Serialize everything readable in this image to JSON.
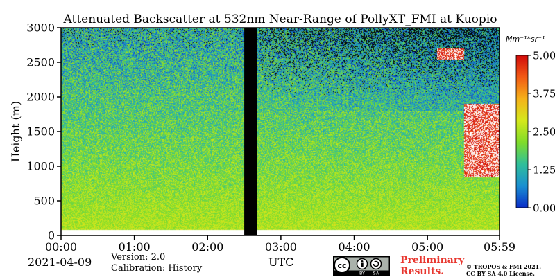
{
  "chart_data": {
    "type": "heatmap",
    "title": "Attenuated Backscatter at 532nm Near-Range of PollyXT_FMI at Kuopio",
    "xlabel": "UTC",
    "ylabel": "Height (m)",
    "x_ticks": [
      "00:00",
      "01:00",
      "02:00",
      "03:00",
      "04:00",
      "05:00",
      "05:59"
    ],
    "x_range_hours": [
      0,
      5.983
    ],
    "y_ticks": [
      0,
      500,
      1000,
      1500,
      2000,
      2500,
      3000
    ],
    "ylim": [
      0,
      3000
    ],
    "colorbar": {
      "unit_label": "Mm⁻¹*sr⁻¹",
      "ticks": [
        "0.00",
        "1.25",
        "2.50",
        "3.75",
        "5.00"
      ],
      "range": [
        0,
        5
      ],
      "colors": [
        "#0a2cc8",
        "#1a8fd1",
        "#2fbf9a",
        "#7fdc2a",
        "#d4e81c",
        "#f5b21a",
        "#f25a14",
        "#d10a0a"
      ]
    },
    "no_data_gaps_hours": [
      [
        2.5,
        2.67
      ]
    ],
    "cloud_features": [
      {
        "start_hour": 5.13,
        "end_hour": 5.5,
        "base_m": 2550,
        "top_m": 2700
      },
      {
        "start_hour": 5.5,
        "end_hour": 5.983,
        "base_m": 850,
        "top_m": 1900
      }
    ],
    "missing_fill_color": "#000000"
  },
  "footer": {
    "date": "2021-04-09",
    "version": "Version: 2.0",
    "calibration": "Calibration: History",
    "utc": "UTC",
    "preliminary_line1": "Preliminary",
    "preliminary_line2": "Results.",
    "copyright_line1": "© TROPOS & FMI 2021.",
    "copyright_line2": "CC BY SA 4.0 License.",
    "cc_badge": {
      "cc": "cc",
      "by": "BY",
      "sa": "SA"
    }
  }
}
